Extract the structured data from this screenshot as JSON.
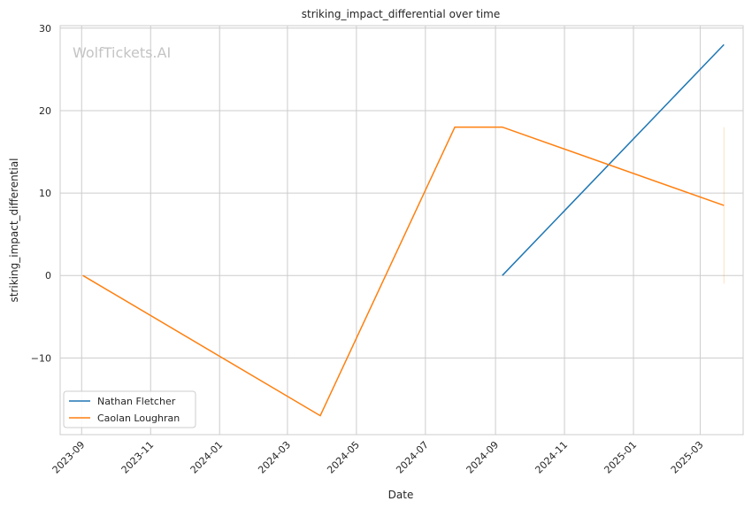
{
  "chart_data": {
    "type": "line",
    "title": "striking_impact_differential over time",
    "xlabel": "Date",
    "ylabel": "striking_impact_differential",
    "watermark": "WolfTickets.AI",
    "x_ticks": [
      "2023-09",
      "2023-11",
      "2024-01",
      "2024-03",
      "2024-05",
      "2024-07",
      "2024-09",
      "2024-11",
      "2025-01",
      "2025-03"
    ],
    "y_ticks": [
      -10,
      0,
      10,
      20,
      30
    ],
    "ylim": [
      -19.3,
      30.3
    ],
    "xlim": [
      "2023-08-13",
      "2025-04-08"
    ],
    "grid": true,
    "legend_position": "lower-left",
    "series": [
      {
        "name": "Nathan Fletcher",
        "color": "#1f77b4",
        "points": [
          {
            "x": "2024-09-07",
            "y": 0
          },
          {
            "x": "2025-03-22",
            "y": 28
          }
        ]
      },
      {
        "name": "Caolan Loughran",
        "color": "#ff7f0e",
        "points": [
          {
            "x": "2023-09-02",
            "y": 0
          },
          {
            "x": "2024-03-30",
            "y": -17
          },
          {
            "x": "2024-07-27",
            "y": 18
          },
          {
            "x": "2024-09-07",
            "y": 18
          },
          {
            "x": "2025-03-22",
            "y": 8.5
          }
        ]
      }
    ],
    "annotations": [
      {
        "type": "error-bar",
        "x": "2025-03-22",
        "y_low": -1,
        "y_high": 18,
        "color": "#ff7f0e"
      }
    ]
  }
}
